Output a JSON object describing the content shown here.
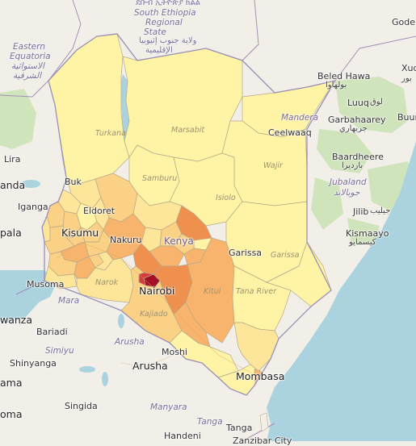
{
  "map": {
    "north_labels": {
      "ethiopic": "ደቡብ ኢትዮጵያ ክልል",
      "region_en": [
        "South Ethiopia",
        "Regional",
        "State"
      ],
      "region_ar": [
        "ولاية جنوب إثيوبيا",
        "الإقليمية"
      ],
      "gode": "Gode"
    },
    "eastern_equatoria": {
      "en": [
        "Eastern",
        "Equatoria"
      ],
      "ar": [
        "الاستوائية",
        "الشرقية"
      ]
    },
    "somalia": {
      "beled_hawa": "Beled Hawa",
      "beled_hawa_ar": "بولهاوا",
      "luuq": "Luuq",
      "luuq_ar": "لوق",
      "garbahaarey": "Garbahaarey",
      "garbahaarey_ar": "جربهاري",
      "baardheere": "Baardheere",
      "baardheere_ar": "بارديرا",
      "jubaland": "Jubaland",
      "jubaland_ar": "جوبالاند",
      "jilib": "Jilib",
      "jilib_ar": "جيليب",
      "kismaayo": "Kismaayo",
      "kismaayo_ar": "كيسمايو",
      "xud": "Xud",
      "xud_ar": "بور",
      "buur": "Buur"
    },
    "uganda_region": {
      "lira": "Lira",
      "anda": "anda",
      "buk": "Buk",
      "iganga": "Iganga",
      "pala": "pala",
      "musoma": "Musoma",
      "mara": "Mara",
      "wanza": "wanza",
      "bariadi": "Bariadi",
      "simiyu": "Simiyu",
      "shinyanga": "Shinyanga",
      "ama": "ama",
      "singida": "Singida",
      "oma": "oma"
    },
    "tanzania": {
      "moshi": "Moshi",
      "arusha_region": "Arusha",
      "arusha_city": "Arusha",
      "manyara": "Manyara",
      "tanga_region": "Tanga",
      "tanga_city": "Tanga",
      "handeni": "Handeni",
      "zanzibar": "Zanzibar City"
    },
    "kenya": {
      "country": "Kenya",
      "nairobi": "Nairobi",
      "mombasa": "Mombasa",
      "kisumu": "Kisumu",
      "eldoret": "Eldoret",
      "nakuru": "Nakuru",
      "garissa_city": "Garissa",
      "mandera": "Mandera",
      "ceelwaaq": "Ceelwaaq",
      "turkana": "Turkana",
      "marsabit": "Marsabit",
      "wajir": "Wajir",
      "samburu": "Samburu",
      "isiolo": "Isiolo",
      "garissa_county": "Garissa",
      "tana_river": "Tana River",
      "kitui": "Kitui",
      "narok": "Narok",
      "kajiado": "Kajiado"
    },
    "choropleth_colors": {
      "low": "#fff3a5",
      "low_mid": "#fde69a",
      "mid": "#fbd185",
      "mid_high": "#f8b46c",
      "high": "#f0904f",
      "very_high": "#d83c3a",
      "max": "#a40f28"
    },
    "base_colors": {
      "land": "#f2efe9",
      "water": "#aad3df",
      "green": "#cbe3b5"
    }
  }
}
